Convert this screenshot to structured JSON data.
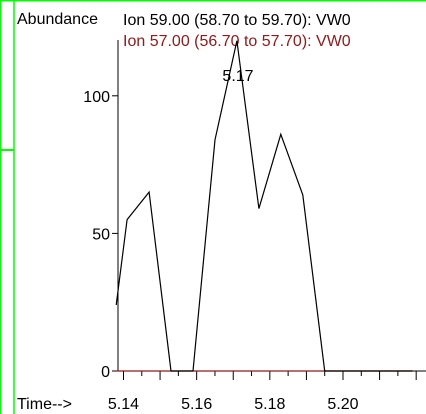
{
  "chart_data": {
    "type": "line",
    "ylabel": "Abundance",
    "xlabel": "Time-->",
    "xlim": [
      5.1385,
      5.2205
    ],
    "ylim": [
      0,
      125
    ],
    "x_ticks": [
      "5.14",
      "5.16",
      "5.18",
      "5.20"
    ],
    "y_ticks": [
      "0",
      "50",
      "100"
    ],
    "peak_label": "5.17",
    "legend": [
      "Ion  59.00 (58.70 to 59.70): VW0",
      "Ion  57.00 (56.70 to 57.70): VW0"
    ],
    "series": [
      {
        "name": "Ion  59.00 (58.70 to 59.70): VW0",
        "color": "#000000",
        "x": [
          5.138,
          5.141,
          5.147,
          5.153,
          5.159,
          5.165,
          5.171,
          5.177,
          5.183,
          5.189,
          5.195,
          5.201,
          5.207,
          5.213,
          5.219
        ],
        "y": [
          24,
          55,
          65,
          0,
          0,
          84,
          120,
          59,
          86,
          64,
          0,
          0,
          0,
          0,
          0
        ]
      },
      {
        "name": "Ion  57.00 (56.70 to 57.70): VW0",
        "color": "#8b1a1a",
        "x": [
          5.138,
          5.219
        ],
        "y": [
          0,
          0
        ]
      }
    ],
    "frame_color": "#00ff00",
    "axis_color": "#000000"
  }
}
